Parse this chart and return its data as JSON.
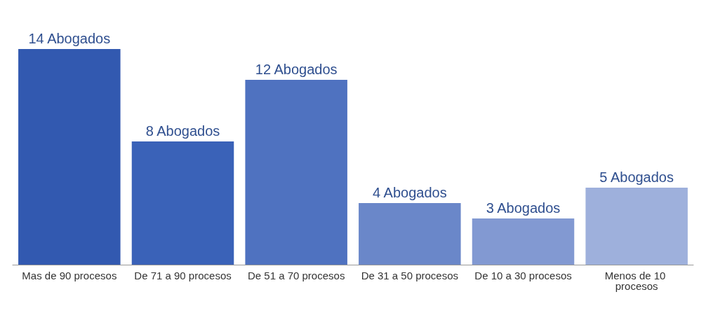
{
  "chart_data": {
    "type": "bar",
    "categories": [
      "Mas de 90 procesos",
      "De 71 a 90 procesos",
      "De 51 a 70 procesos",
      "De 31 a 50 procesos",
      "De 10 a 30 procesos",
      "Menos de 10 procesos"
    ],
    "values": [
      14,
      8,
      12,
      4,
      3,
      5
    ],
    "value_labels": [
      "14 Abogados",
      "8 Abogados",
      "12 Abogados",
      "4 Abogados",
      "3 Abogados",
      "5 Abogados"
    ],
    "colors": [
      "#3259b0",
      "#3a62b8",
      "#4f72c0",
      "#6a87c9",
      "#8299d2",
      "#9eb0dc"
    ],
    "grid": false
  }
}
